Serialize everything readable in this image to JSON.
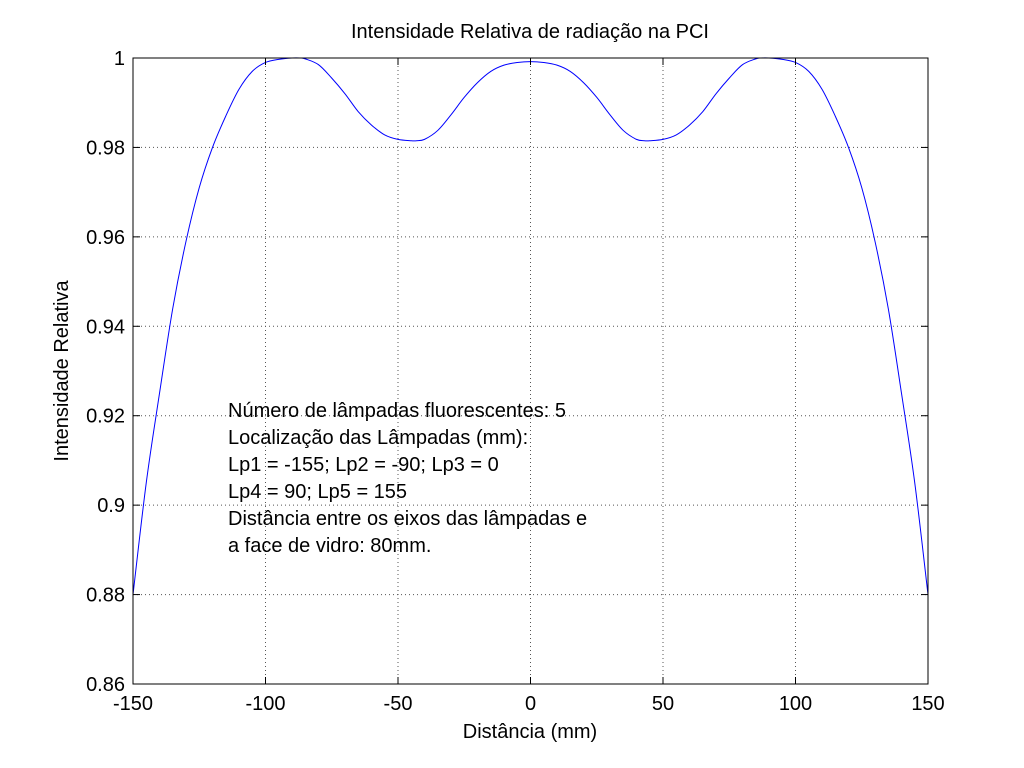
{
  "chart_data": {
    "type": "line",
    "title": "Intensidade Relativa de radiação na PCI",
    "xlabel": "Distância (mm)",
    "ylabel": "Intensidade Relativa",
    "xlim": [
      -150,
      150
    ],
    "ylim": [
      0.86,
      1.0
    ],
    "xticks": [
      -150,
      -100,
      -50,
      0,
      50,
      100,
      150
    ],
    "xtick_labels": [
      "-150",
      "-100",
      "-50",
      "0",
      "50",
      "100",
      "150"
    ],
    "yticks": [
      0.86,
      0.88,
      0.9,
      0.92,
      0.94,
      0.96,
      0.98,
      1.0
    ],
    "ytick_labels": [
      "0.86",
      "0.88",
      "0.9",
      "0.92",
      "0.94",
      "0.96",
      "0.98",
      "1"
    ],
    "grid": true,
    "line_color": "#0000ff",
    "series": [
      {
        "x": [
          -150,
          -145,
          -140,
          -135,
          -130,
          -125,
          -120,
          -115,
          -110,
          -105,
          -100,
          -95,
          -90,
          -87,
          -85,
          -80,
          -75,
          -70,
          -65,
          -60,
          -55,
          -50,
          -45,
          -43,
          -40,
          -35,
          -30,
          -25,
          -20,
          -15,
          -10,
          -5,
          0,
          5,
          10,
          15,
          20,
          25,
          30,
          35,
          40,
          43,
          45,
          50,
          55,
          60,
          65,
          70,
          75,
          80,
          85,
          87,
          90,
          95,
          100,
          105,
          110,
          115,
          120,
          125,
          130,
          135,
          140,
          145,
          150
        ],
        "y": [
          0.88,
          0.905,
          0.925,
          0.944,
          0.959,
          0.971,
          0.98,
          0.987,
          0.993,
          0.997,
          0.999,
          0.9997,
          1.0,
          1.0,
          0.9998,
          0.9985,
          0.9955,
          0.992,
          0.988,
          0.985,
          0.9828,
          0.9818,
          0.9815,
          0.9815,
          0.9818,
          0.9838,
          0.9873,
          0.9912,
          0.9945,
          0.997,
          0.9984,
          0.999,
          0.9992,
          0.999,
          0.9984,
          0.997,
          0.9945,
          0.9912,
          0.9873,
          0.9838,
          0.9818,
          0.9815,
          0.9815,
          0.9818,
          0.9828,
          0.985,
          0.988,
          0.992,
          0.9955,
          0.9985,
          0.9998,
          1.0,
          1.0,
          0.9997,
          0.999,
          0.997,
          0.993,
          0.987,
          0.98,
          0.971,
          0.959,
          0.944,
          0.925,
          0.905,
          0.88
        ]
      }
    ],
    "annotation_lines": [
      "Número de lâmpadas fluorescentes: 5",
      "Localização das Lâmpadas (mm):",
      "Lp1 = -155; Lp2 = -90; Lp3 = 0",
      "Lp4 = 90; Lp5 = 155",
      "Distância entre os eixos das lâmpadas e",
      "a face de vidro: 80mm."
    ]
  }
}
